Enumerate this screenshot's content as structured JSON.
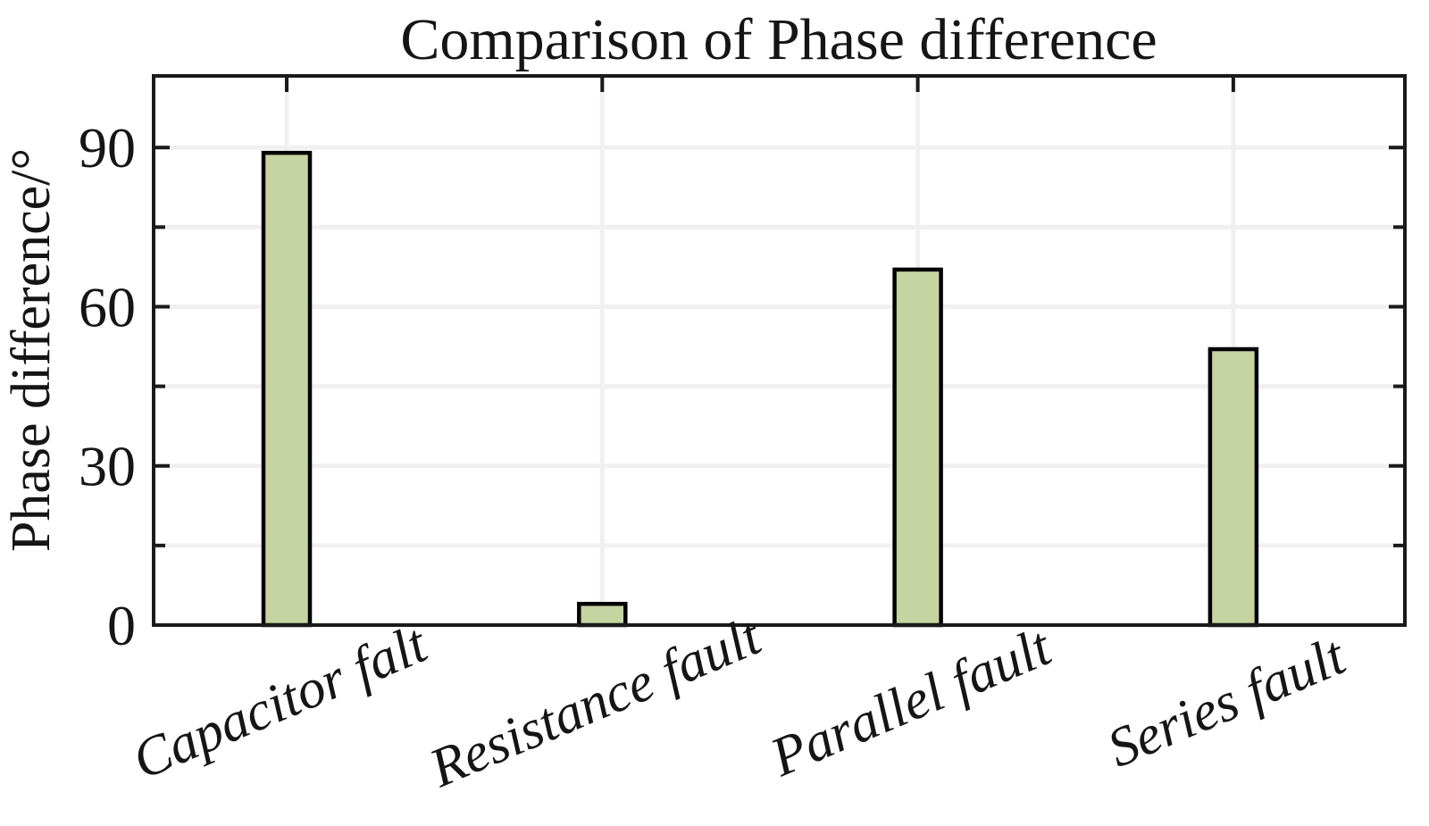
{
  "chart_data": {
    "type": "bar",
    "title": "Comparison of Phase difference",
    "xlabel": "",
    "ylabel": "Phase difference/°",
    "categories": [
      "Capacitor falt",
      "Resistance fault",
      "Parallel fault",
      "Series fault"
    ],
    "values": [
      89,
      4,
      67,
      52
    ],
    "ylim": [
      0,
      103.5
    ],
    "yticks": [
      0,
      30,
      60,
      90
    ],
    "ytick_labels": [
      "0",
      "30",
      "60",
      "90"
    ],
    "grid": true,
    "grid_step": 15,
    "legend": "none",
    "xtick_rotation_deg": 23,
    "bar_fill_color": "#c5d4a0",
    "bar_edge_color": "#000000",
    "axis_color": "#1a1a1a",
    "grid_color": "#f0f0f0",
    "background_color": "#ffffff"
  }
}
